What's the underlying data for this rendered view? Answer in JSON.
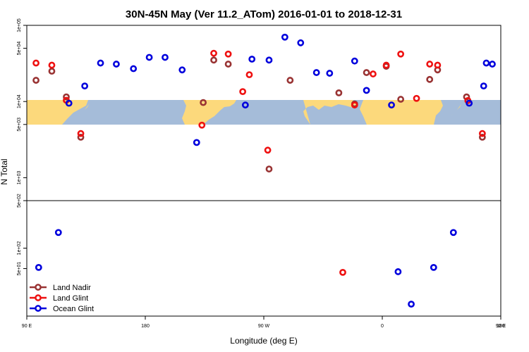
{
  "chart_data": {
    "type": "scatter",
    "title": "30N-45N May (Ver 11.2_ATom)   2016-01-01 to 2018-12-31",
    "xlabel": "Longitude (deg E)",
    "ylabel": "N Total",
    "x_ticks": [
      "90 E",
      "180",
      "90 W",
      "0",
      "90 E",
      "180"
    ],
    "xlim": [
      90,
      450
    ],
    "y_ticks_upper": [
      "1e+05",
      "5e+04",
      "1e+04",
      "5e+03",
      "1e+03",
      "5e+02"
    ],
    "y_ticks_lower": [
      "1e+02",
      "5e+01"
    ],
    "ylim_upper": [
      500,
      100000
    ],
    "ylim_lower": [
      10,
      500
    ],
    "log_scale": true,
    "grid": false,
    "legend_position": "bottom-left",
    "map_band_lat": "30N-45N",
    "colors": {
      "ocean": "#a5bcd9",
      "land": "#fcd97c",
      "land_nadir": "#993333",
      "land_glint": "#ee1111",
      "ocean_glint": "#0000dd"
    },
    "series": [
      {
        "name": "Land Nadir",
        "color": "#993333",
        "points": [
          {
            "x": 97,
            "y": 19000
          },
          {
            "x": 109,
            "y": 25000
          },
          {
            "x": 120,
            "y": 11500
          },
          {
            "x": 131,
            "y": 3400
          },
          {
            "x": 224,
            "y": 9700
          },
          {
            "x": 232,
            "y": 35000
          },
          {
            "x": 243,
            "y": 31000
          },
          {
            "x": 274,
            "y": 1300
          },
          {
            "x": 290,
            "y": 19000
          },
          {
            "x": 327,
            "y": 13000
          },
          {
            "x": 339,
            "y": 9300
          },
          {
            "x": 348,
            "y": 24000
          },
          {
            "x": 363,
            "y": 29000
          },
          {
            "x": 374,
            "y": 10700
          },
          {
            "x": 396,
            "y": 19500
          },
          {
            "x": 402,
            "y": 26000
          },
          {
            "x": 424,
            "y": 11500
          },
          {
            "x": 436,
            "y": 3400
          }
        ]
      },
      {
        "name": "Land Glint",
        "color": "#ee1111",
        "points": [
          {
            "x": 97,
            "y": 32000
          },
          {
            "x": 109,
            "y": 30000
          },
          {
            "x": 120,
            "y": 10400
          },
          {
            "x": 131,
            "y": 3800
          },
          {
            "x": 223,
            "y": 4900
          },
          {
            "x": 232,
            "y": 43000
          },
          {
            "x": 243,
            "y": 42000
          },
          {
            "x": 273,
            "y": 2300
          },
          {
            "x": 330,
            "y": 44
          },
          {
            "x": 339,
            "y": 9000
          },
          {
            "x": 353,
            "y": 23000
          },
          {
            "x": 363,
            "y": 30000
          },
          {
            "x": 374,
            "y": 42000
          },
          {
            "x": 386,
            "y": 11000
          },
          {
            "x": 396,
            "y": 31000
          },
          {
            "x": 402,
            "y": 30000
          },
          {
            "x": 425,
            "y": 10300
          },
          {
            "x": 436,
            "y": 3800
          },
          {
            "x": 254,
            "y": 13500
          },
          {
            "x": 259,
            "y": 22500
          }
        ]
      },
      {
        "name": "Ocean Glint",
        "color": "#0000dd",
        "points": [
          {
            "x": 99,
            "y": 52
          },
          {
            "x": 114,
            "y": 170
          },
          {
            "x": 122,
            "y": 9500
          },
          {
            "x": 134,
            "y": 16000
          },
          {
            "x": 146,
            "y": 32000
          },
          {
            "x": 158,
            "y": 31000
          },
          {
            "x": 171,
            "y": 27000
          },
          {
            "x": 183,
            "y": 38000
          },
          {
            "x": 195,
            "y": 38000
          },
          {
            "x": 208,
            "y": 26000
          },
          {
            "x": 219,
            "y": 2900
          },
          {
            "x": 256,
            "y": 9000
          },
          {
            "x": 261,
            "y": 36000
          },
          {
            "x": 274,
            "y": 35000
          },
          {
            "x": 286,
            "y": 70000
          },
          {
            "x": 298,
            "y": 59000
          },
          {
            "x": 310,
            "y": 24000
          },
          {
            "x": 320,
            "y": 23500
          },
          {
            "x": 339,
            "y": 34000
          },
          {
            "x": 348,
            "y": 14000
          },
          {
            "x": 367,
            "y": 9000
          },
          {
            "x": 372,
            "y": 45
          },
          {
            "x": 382,
            "y": 15
          },
          {
            "x": 399,
            "y": 52
          },
          {
            "x": 414,
            "y": 170
          },
          {
            "x": 426,
            "y": 9500
          },
          {
            "x": 437,
            "y": 16000
          },
          {
            "x": 439,
            "y": 32000
          },
          {
            "x": 453,
            "y": 31000
          }
        ]
      }
    ]
  }
}
